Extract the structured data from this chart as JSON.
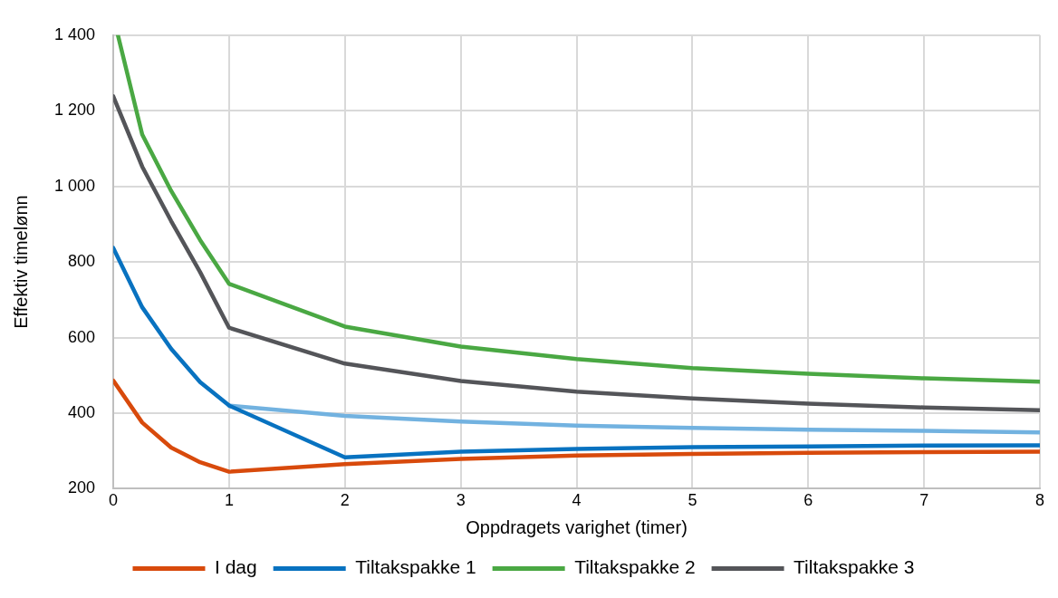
{
  "chart_data": {
    "type": "line",
    "xlabel": "Oppdragets varighet (timer)",
    "ylabel": "Effektiv timelønn",
    "xlim": [
      0,
      8
    ],
    "xticks": [
      0,
      1,
      2,
      3,
      4,
      5,
      6,
      7,
      8
    ],
    "ylim": [
      200,
      1400
    ],
    "yticks": [
      200,
      400,
      600,
      800,
      {
        "value": 1000,
        "label": "1 000"
      },
      {
        "value": 1200,
        "label": "1 200"
      },
      {
        "value": 1400,
        "label": "1 400"
      }
    ],
    "grid": true,
    "legend": "bottom",
    "marker": "none",
    "line_style": "solid",
    "series": [
      {
        "name": "I dag",
        "color": "#d84a0c",
        "x": [
          0,
          0.25,
          0.5,
          0.75,
          1,
          2,
          3,
          4,
          5,
          6,
          7,
          8
        ],
        "values": [
          486,
          375,
          309,
          270,
          245,
          265,
          279,
          288,
          292,
          295,
          297,
          298
        ]
      },
      {
        "name": "Tiltakspakke 1",
        "color": "#0872c0",
        "x": [
          0,
          0.25,
          0.5,
          0.75,
          1,
          2,
          3,
          4,
          5,
          6,
          7,
          8
        ],
        "values": [
          837,
          680,
          570,
          482,
          420,
          283,
          298,
          305,
          310,
          312,
          314,
          315
        ]
      },
      {
        "name": "Tiltakspakke 2",
        "color": "#4aa843",
        "x": [
          0.04,
          0.25,
          0.5,
          0.75,
          1,
          2,
          3,
          4,
          5,
          6,
          7,
          8
        ],
        "values": [
          1400,
          1137,
          988,
          858,
          742,
          629,
          576,
          543,
          519,
          504,
          492,
          483
        ]
      },
      {
        "name": "Tiltakspakke 3",
        "color": "#545559",
        "x": [
          0,
          0.25,
          0.5,
          0.75,
          1,
          2,
          3,
          4,
          5,
          6,
          7,
          8
        ],
        "values": [
          1238,
          1052,
          908,
          773,
          626,
          531,
          485,
          457,
          439,
          425,
          415,
          408
        ]
      },
      {
        "color": "#72b2e0",
        "x": [
          1,
          2,
          3,
          4,
          5,
          6,
          7,
          8
        ],
        "values": [
          420,
          393,
          378,
          367,
          361,
          356,
          353,
          349
        ]
      }
    ]
  }
}
